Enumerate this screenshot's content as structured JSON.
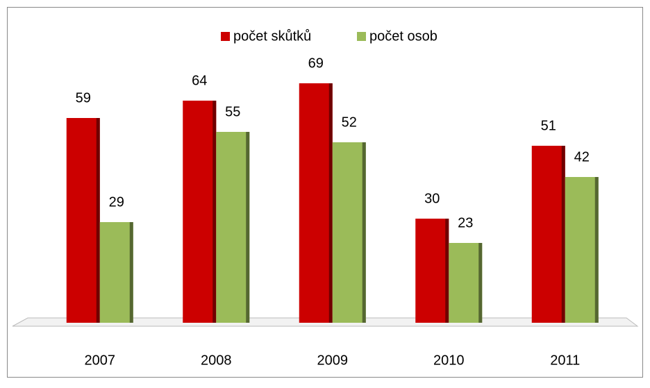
{
  "chart_data": {
    "type": "bar",
    "categories": [
      "2007",
      "2008",
      "2009",
      "2010",
      "2011"
    ],
    "series": [
      {
        "name": "počet skůtků",
        "color": "#cc0000",
        "values": [
          59,
          64,
          69,
          30,
          51
        ]
      },
      {
        "name": "počet osob",
        "color": "#9bbb59",
        "values": [
          29,
          55,
          52,
          23,
          42
        ]
      }
    ],
    "legend": "top"
  }
}
